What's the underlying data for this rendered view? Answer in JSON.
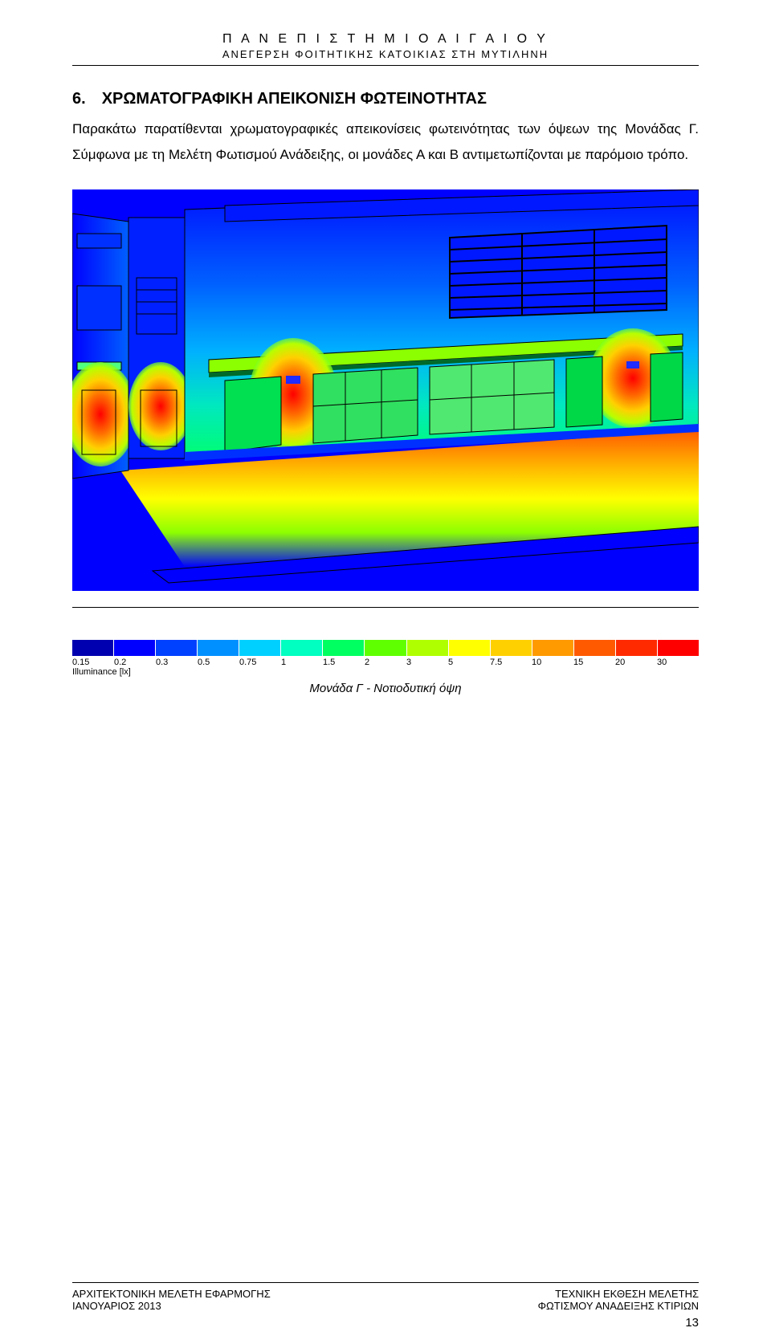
{
  "header": {
    "title": "Π Α Ν Ε Π Ι Σ Τ Η Μ Ι Ο   Α Ι Γ Α Ι Ο Υ",
    "subtitle": "ΑΝΕΓΕΡΣΗ ΦΟΙΤΗΤΙΚΗΣ ΚΑΤΟΙΚΙΑΣ ΣΤΗ ΜΥΤΙΛΗΝΗ"
  },
  "section": {
    "number": "6.",
    "title": "ΧΡΩΜΑΤΟΓΡΑΦΙΚΗ ΑΠΕΙΚΟΝΙΣΗ ΦΩΤΕΙΝΟΤΗΤΑΣ",
    "body": "Παρακάτω παρατίθενται χρωματογραφικές απεικονίσεις φωτεινότητας των όψεων της Μονάδας Γ. Σύμφωνα με τη Μελέτη Φωτισμού Ανάδειξης, οι μονάδες Α και Β αντιμετωπίζονται με παρόμοιο τρόπο."
  },
  "visualization": {
    "type": "illuminance-heatmap",
    "background_color": "#ffffff",
    "sky_color": "#0000ff",
    "ground_far_color": "#0000ff",
    "ground_near_colors": [
      "#00ff3a",
      "#b7ff00",
      "#ffff00",
      "#ffb000",
      "#ff5a00",
      "#ff1a00"
    ],
    "building_outline_color": "#000000",
    "hotspot_color": "#ff0000",
    "warm_color": "#ff9a00",
    "cool_color": "#00ff88",
    "upper_wall_gradient": [
      "#0010ff",
      "#0060ff",
      "#00b0ff",
      "#00e8c0",
      "#00ff70"
    ],
    "canopy_color": "#8cff00",
    "door_panel_color": "#00e050",
    "lamp_rect_color": "#1f2bff"
  },
  "legend": {
    "unit_label": "Illuminance [lx]",
    "ticks": [
      "0.15",
      "0.2",
      "0.3",
      "0.5",
      "0.75",
      "1",
      "1.5",
      "2",
      "3",
      "5",
      "7.5",
      "10",
      "15",
      "20",
      "30"
    ],
    "colors": [
      "#0000b0",
      "#0000ff",
      "#0040ff",
      "#0090ff",
      "#00d0ff",
      "#00ffc0",
      "#00ff60",
      "#60ff00",
      "#b0ff00",
      "#ffff00",
      "#ffd000",
      "#ff9a00",
      "#ff5a00",
      "#ff2a00",
      "#ff0000"
    ]
  },
  "caption": "Μονάδα Γ - Νοτιοδυτική όψη",
  "footer": {
    "left_line1": "ΑΡΧΙΤΕΚΤΟΝΙΚΗ ΜΕΛΕΤΗ ΕΦΑΡΜΟΓΗΣ",
    "left_line2": "ΙΑΝΟΥΑΡΙΟΣ 2013",
    "right_line1": "ΤΕΧΝΙΚΗ ΕΚΘΕΣΗ ΜΕΛΕΤΗΣ",
    "right_line2": "ΦΩΤΙΣΜΟΥ ΑΝΑΔΕΙΞΗΣ ΚΤΙΡΙΩΝ",
    "page_number": "13"
  }
}
